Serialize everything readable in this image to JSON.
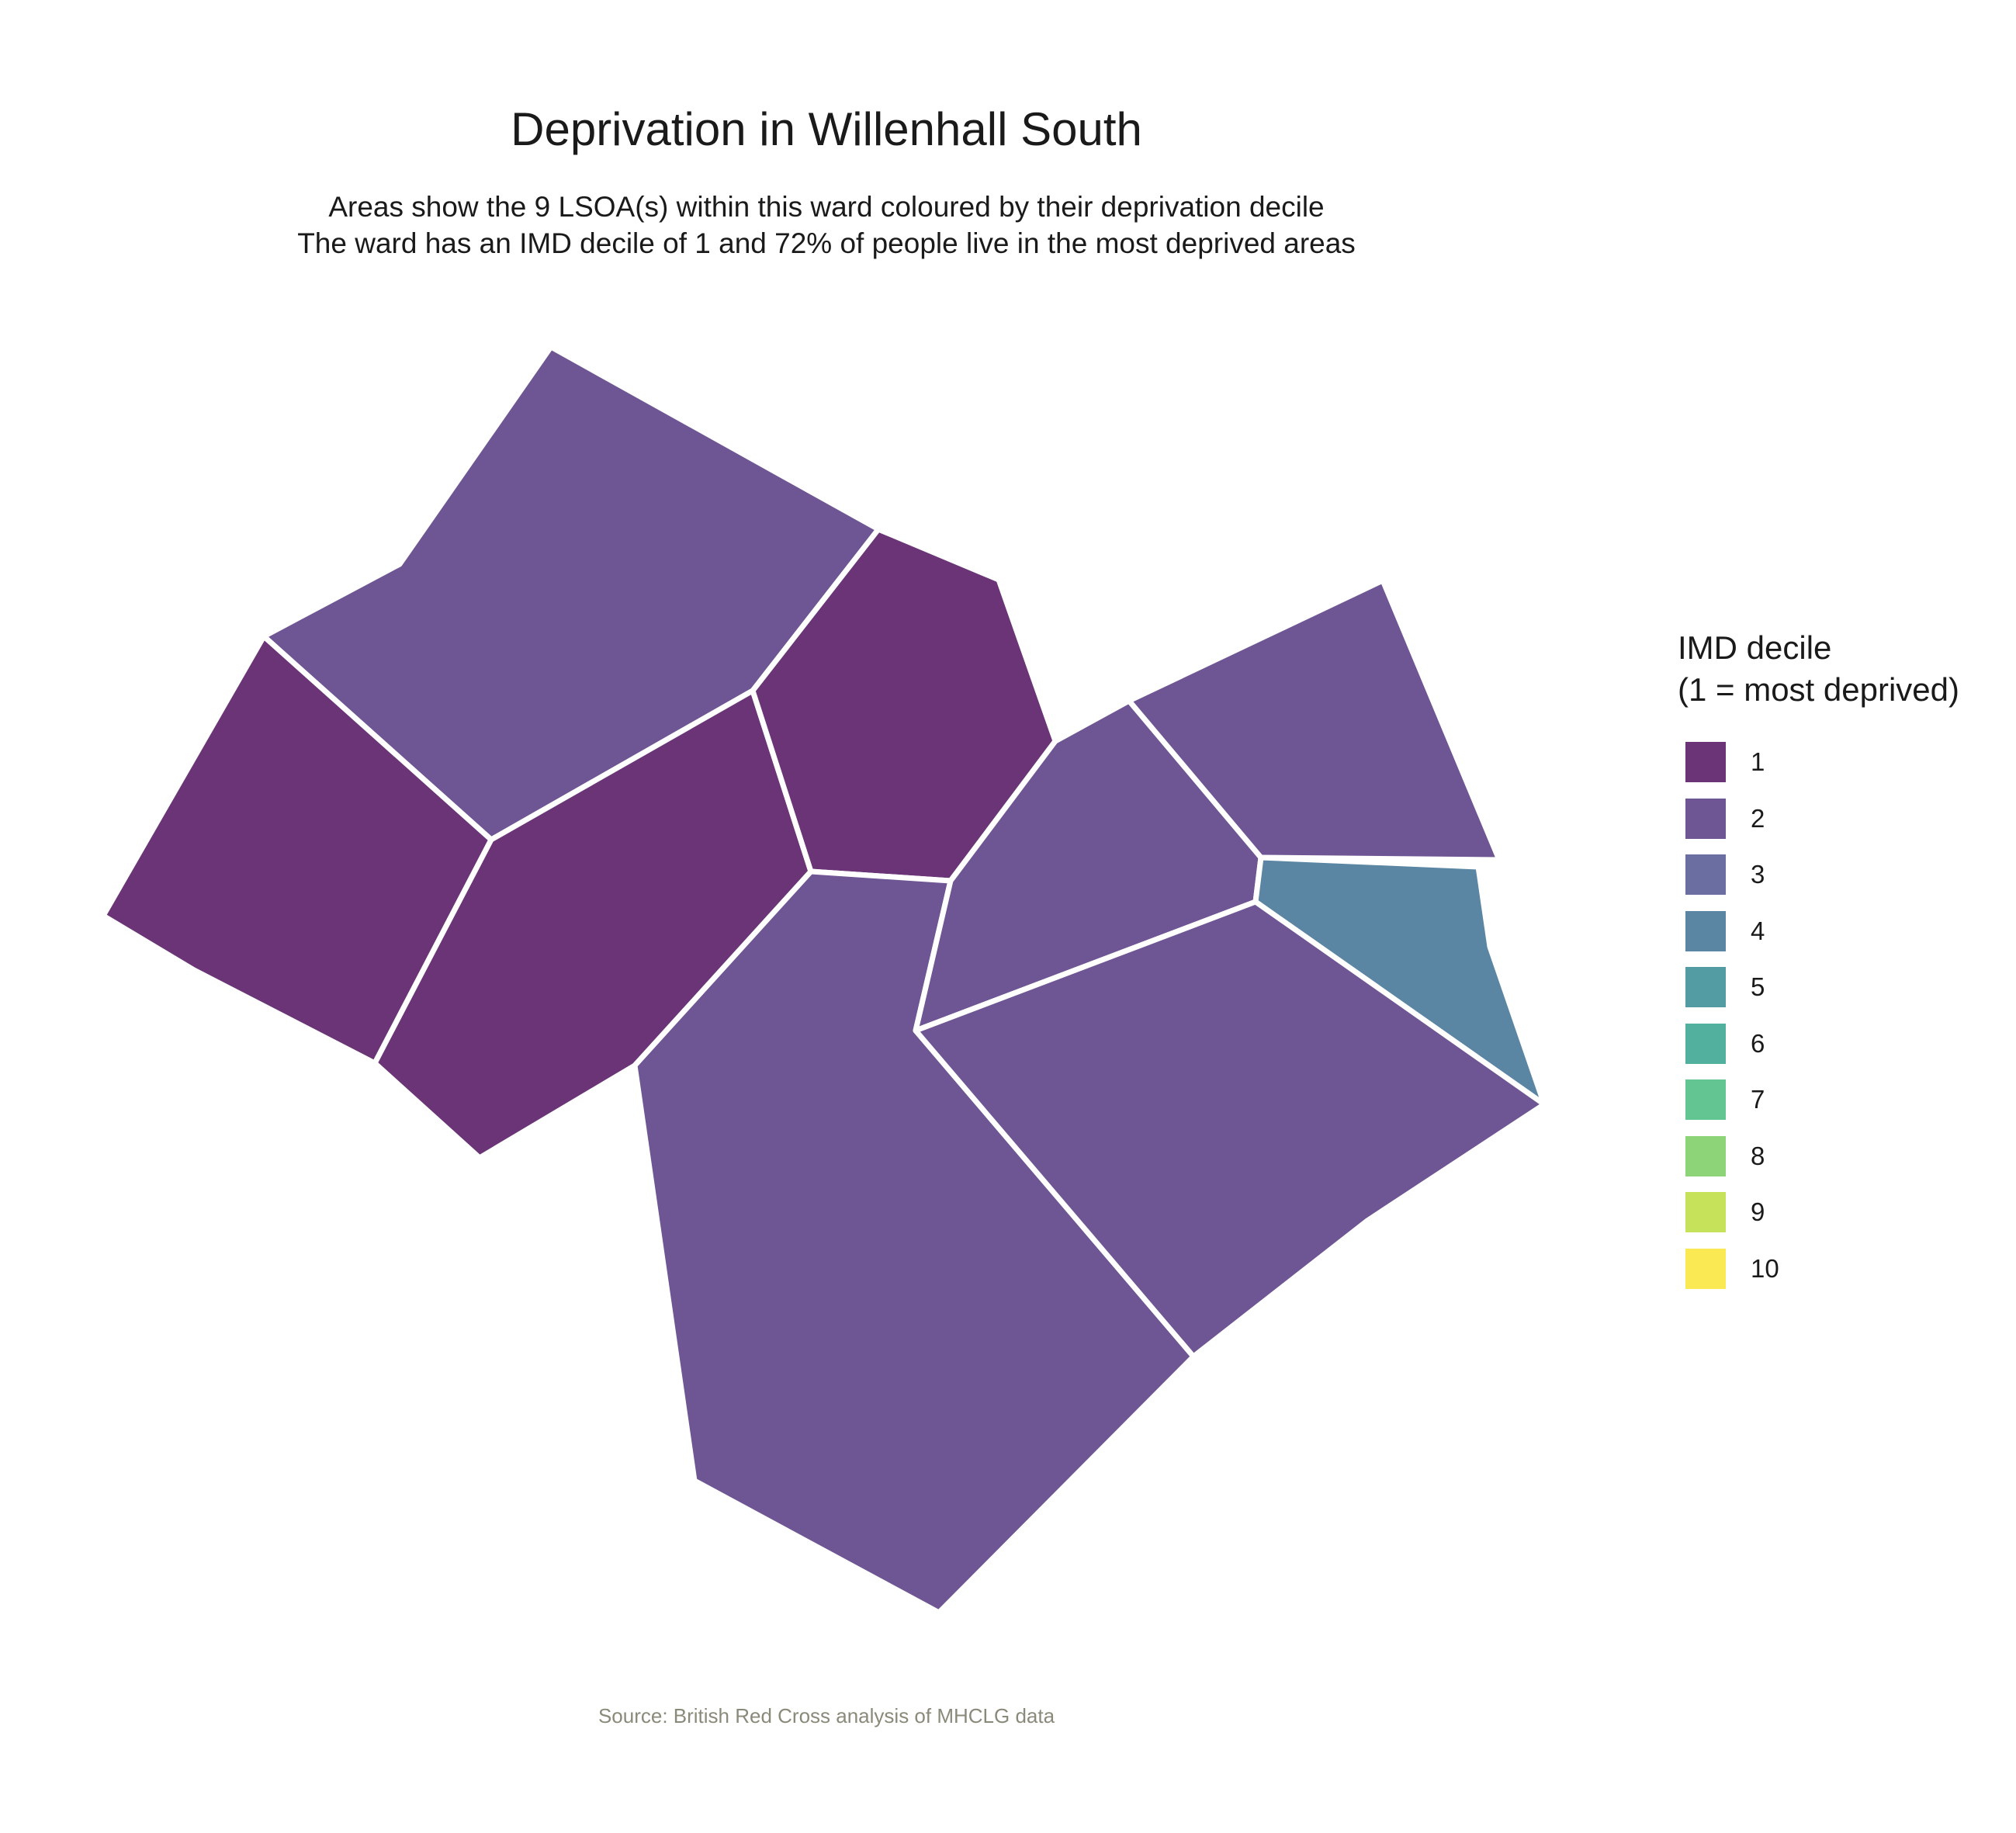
{
  "title": "Deprivation in Willenhall South",
  "subtitle_line1": "Areas show the 9 LSOA(s) within this ward coloured by their deprivation decile",
  "subtitle_line2": "The ward has an IMD decile of 1 and 72% of people live in the most deprived areas",
  "caption": "Source: British Red Cross analysis of MHCLG data",
  "legend": {
    "title_line1": "IMD decile",
    "title_line2": "(1 = most deprived)",
    "items": [
      {
        "label": "1",
        "color": "#6a3477"
      },
      {
        "label": "2",
        "color": "#6e5593"
      },
      {
        "label": "3",
        "color": "#6a6ea0"
      },
      {
        "label": "4",
        "color": "#5a86a3"
      },
      {
        "label": "5",
        "color": "#539ca4"
      },
      {
        "label": "6",
        "color": "#51b09e"
      },
      {
        "label": "7",
        "color": "#62c592"
      },
      {
        "label": "8",
        "color": "#8dd479"
      },
      {
        "label": "9",
        "color": "#c6e25b"
      },
      {
        "label": "10",
        "color": "#fbe954"
      }
    ]
  },
  "chart_data": {
    "type": "choropleth",
    "ward": "Willenhall South",
    "lsoa_count": 9,
    "ward_imd_decile": 1,
    "percent_in_most_deprived": 72,
    "areas": [
      {
        "id": "lsoa-north",
        "decile": 2
      },
      {
        "id": "lsoa-west",
        "decile": 1
      },
      {
        "id": "lsoa-central",
        "decile": 1
      },
      {
        "id": "lsoa-north-central",
        "decile": 1
      },
      {
        "id": "lsoa-south",
        "decile": 2
      },
      {
        "id": "lsoa-east-middle",
        "decile": 2
      },
      {
        "id": "lsoa-northeast",
        "decile": 2
      },
      {
        "id": "lsoa-east",
        "decile": 4
      },
      {
        "id": "lsoa-southeast",
        "decile": 2
      }
    ]
  }
}
